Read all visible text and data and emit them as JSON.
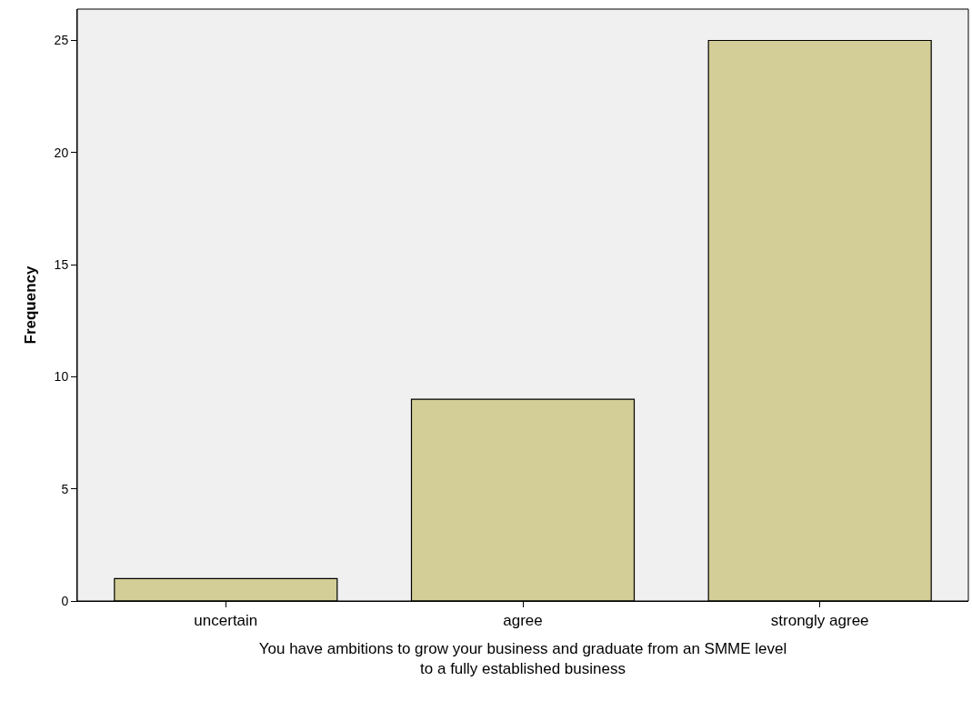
{
  "chart_data": {
    "type": "bar",
    "xlabel": "You have ambitions to grow your business and graduate from an SMME level\nto a fully established business",
    "ylabel": "Frequency",
    "categories": [
      "uncertain",
      "agree",
      "strongly agree"
    ],
    "values": [
      1,
      9,
      25
    ],
    "color": "#d3ce97",
    "ylim": [
      0,
      26.4
    ],
    "yticks": [
      0,
      5,
      10,
      15,
      20,
      25
    ],
    "grid": false
  }
}
